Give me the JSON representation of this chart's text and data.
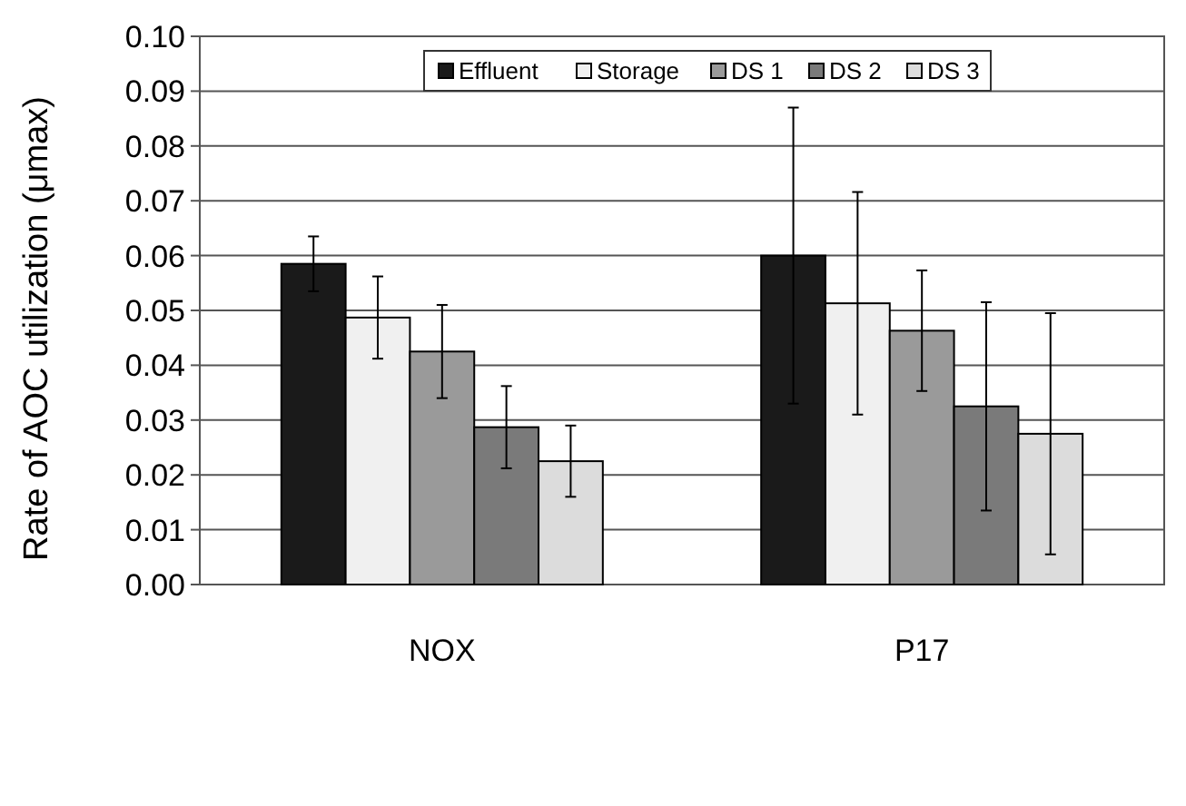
{
  "chart_data": {
    "type": "bar",
    "ylabel": "Rate of AOC utilization (μmax)",
    "categories": [
      "NOX",
      "P17"
    ],
    "series": [
      {
        "name": "Effluent",
        "color": "#1a1a1a",
        "values": [
          0.0585,
          0.06
        ],
        "errors": [
          0.005,
          0.027
        ]
      },
      {
        "name": "Storage",
        "color": "#f0f0f0",
        "values": [
          0.0487,
          0.0513
        ],
        "errors": [
          0.0075,
          0.0203
        ]
      },
      {
        "name": "DS 1",
        "color": "#9a9a9a",
        "values": [
          0.0425,
          0.0463
        ],
        "errors": [
          0.0085,
          0.011
        ]
      },
      {
        "name": "DS 2",
        "color": "#7a7a7a",
        "values": [
          0.0287,
          0.0325
        ],
        "errors": [
          0.0075,
          0.019
        ]
      },
      {
        "name": "DS 3",
        "color": "#dcdcdc",
        "values": [
          0.0225,
          0.0275
        ],
        "errors": [
          0.0065,
          0.022
        ]
      }
    ],
    "ylim": [
      0,
      0.1
    ],
    "yticks": [
      {
        "value": 0,
        "label": "0.00"
      },
      {
        "value": 0.01,
        "label": "0.01"
      },
      {
        "value": 0.02,
        "label": "0.02"
      },
      {
        "value": 0.03,
        "label": "0.03"
      },
      {
        "value": 0.04,
        "label": "0.04"
      },
      {
        "value": 0.05,
        "label": "0.05"
      },
      {
        "value": 0.06,
        "label": "0.06"
      },
      {
        "value": 0.07,
        "label": "0.07"
      },
      {
        "value": 0.08,
        "label": "0.08"
      },
      {
        "value": 0.09,
        "label": "0.09"
      },
      {
        "value": 0.1,
        "label": "0.10"
      }
    ],
    "grid": "y",
    "legend": "top"
  }
}
